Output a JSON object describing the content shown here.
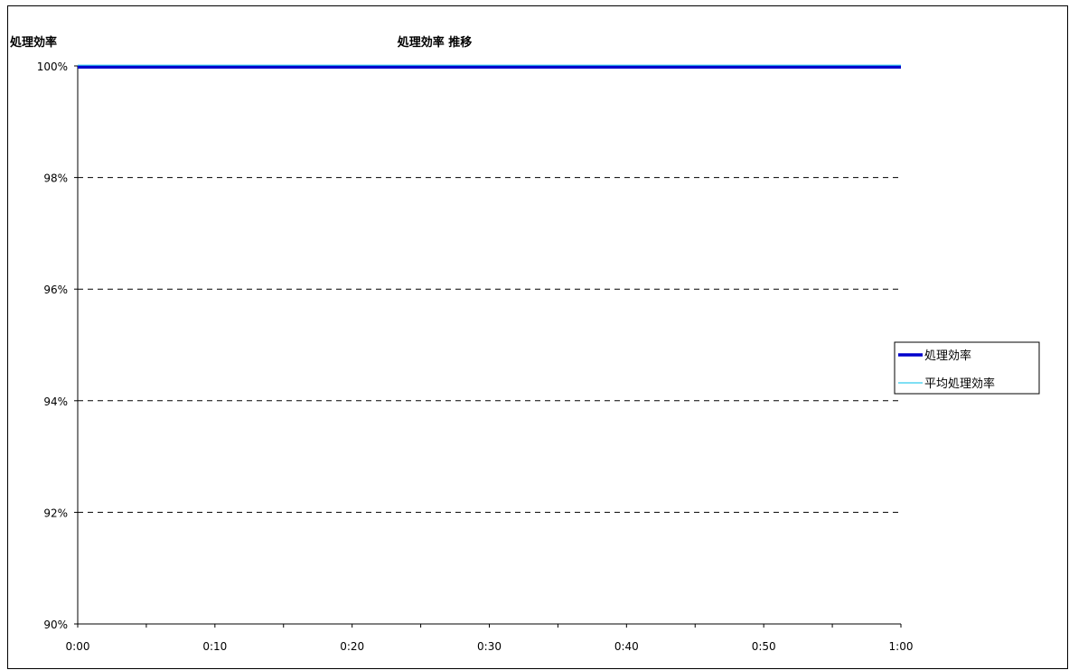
{
  "chart_data": {
    "type": "line",
    "title": "処理効率 推移",
    "ylabel": "処理効率",
    "xlabel": "",
    "x_ticks": [
      "0:00",
      "0:10",
      "0:20",
      "0:30",
      "0:40",
      "0:50",
      "1:00"
    ],
    "y_ticks": [
      "90%",
      "92%",
      "94%",
      "96%",
      "98%",
      "100%"
    ],
    "xlim": [
      0,
      60
    ],
    "ylim": [
      90,
      100
    ],
    "grid": "horizontal-dashed",
    "legend_position": "right",
    "series": [
      {
        "name": "処理効率",
        "color": "#0000cc",
        "x": [
          0,
          60
        ],
        "values": [
          100,
          100
        ]
      },
      {
        "name": "平均処理効率",
        "color": "#33ccee",
        "x": [
          0,
          60
        ],
        "values": [
          100,
          100
        ]
      }
    ]
  }
}
